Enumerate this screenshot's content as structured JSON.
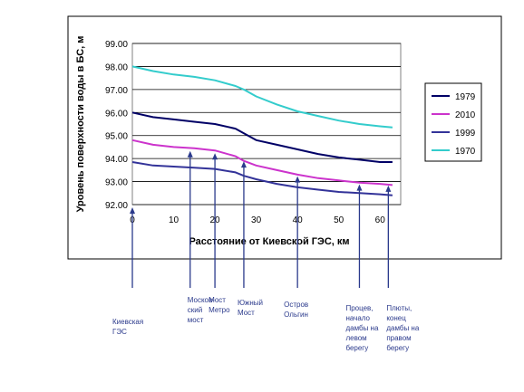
{
  "chart_data": {
    "type": "line",
    "title": "",
    "xlabel": "Расстояние от  Киевской ГЭС, км",
    "ylabel": "Уровень поверхности воды в БС, м",
    "xlim": [
      0,
      65
    ],
    "ylim": [
      92.0,
      99.0
    ],
    "x_ticks": [
      "0",
      "10",
      "20",
      "30",
      "40",
      "50",
      "60"
    ],
    "y_ticks": [
      "92.00",
      "93.00",
      "94.00",
      "95.00",
      "96.00",
      "97.00",
      "98.00",
      "99.00"
    ],
    "grid": "horizontal",
    "legend_position": "right",
    "series": [
      {
        "name": "1979",
        "color": "#000066",
        "x": [
          0,
          5,
          10,
          15,
          20,
          25,
          27,
          30,
          35,
          40,
          45,
          50,
          55,
          60,
          63
        ],
        "y": [
          96.0,
          95.8,
          95.7,
          95.6,
          95.5,
          95.3,
          95.1,
          94.8,
          94.6,
          94.4,
          94.2,
          94.05,
          93.95,
          93.85,
          93.85
        ]
      },
      {
        "name": "2010",
        "color": "#cc33cc",
        "x": [
          0,
          5,
          10,
          15,
          20,
          25,
          27,
          30,
          35,
          40,
          45,
          50,
          55,
          60,
          63
        ],
        "y": [
          94.8,
          94.6,
          94.5,
          94.45,
          94.35,
          94.1,
          93.9,
          93.7,
          93.5,
          93.3,
          93.15,
          93.05,
          92.95,
          92.9,
          92.85
        ]
      },
      {
        "name": "1999",
        "color": "#333399",
        "x": [
          0,
          5,
          10,
          15,
          20,
          25,
          27,
          30,
          35,
          40,
          45,
          50,
          55,
          60,
          63
        ],
        "y": [
          93.85,
          93.7,
          93.65,
          93.6,
          93.55,
          93.4,
          93.25,
          93.1,
          92.9,
          92.75,
          92.65,
          92.55,
          92.5,
          92.45,
          92.4
        ]
      },
      {
        "name": "1970",
        "color": "#33cccc",
        "x": [
          0,
          5,
          10,
          15,
          20,
          25,
          27,
          30,
          35,
          40,
          45,
          50,
          55,
          60,
          63
        ],
        "y": [
          98.0,
          97.8,
          97.65,
          97.55,
          97.4,
          97.15,
          97.0,
          96.7,
          96.35,
          96.05,
          95.85,
          95.65,
          95.5,
          95.4,
          95.35
        ]
      }
    ],
    "annotations": [
      {
        "x": 0,
        "arrow_to_y": 92.0,
        "label": "Киевская\nГЭС"
      },
      {
        "x": 14,
        "arrow_to_y": 94.45,
        "label": "Москов-\nский\nмост"
      },
      {
        "x": 20,
        "arrow_to_y": 94.35,
        "label": "Мост\nМетро"
      },
      {
        "x": 27,
        "arrow_to_y": 94.0,
        "label": "Южный\nМост"
      },
      {
        "x": 40,
        "arrow_to_y": 93.35,
        "label": "Остров\nОльгин"
      },
      {
        "x": 55,
        "arrow_to_y": 93.0,
        "label": "Процев,\nначало\nдамбы на\nлевом\nберегу"
      },
      {
        "x": 62,
        "arrow_to_y": 92.95,
        "label": "Плюты,\nконец\nдамбы на\nправом\nберегу"
      }
    ]
  }
}
